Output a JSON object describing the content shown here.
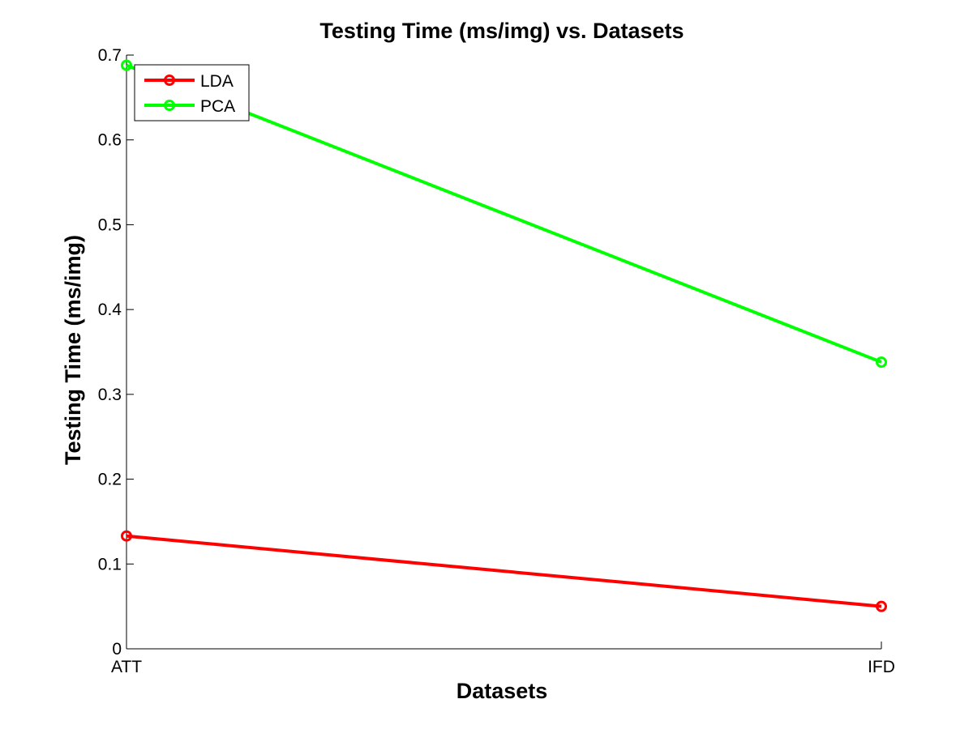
{
  "chart_data": {
    "type": "line",
    "title": "Testing Time (ms/img) vs. Datasets",
    "xlabel": "Datasets",
    "ylabel": "Testing Time (ms/img)",
    "categories": [
      "ATT",
      "IFD"
    ],
    "ylim": [
      0,
      0.7
    ],
    "yticks": [
      "0",
      "0.1",
      "0.2",
      "0.3",
      "0.4",
      "0.5",
      "0.6",
      "0.7"
    ],
    "grid": false,
    "legend_position": "top-left",
    "series": [
      {
        "name": "LDA",
        "color": "#ff0000",
        "marker": "circle",
        "values": [
          0.133,
          0.05
        ]
      },
      {
        "name": "PCA",
        "color": "#00ff00",
        "marker": "circle",
        "values": [
          0.688,
          0.338
        ]
      }
    ]
  }
}
